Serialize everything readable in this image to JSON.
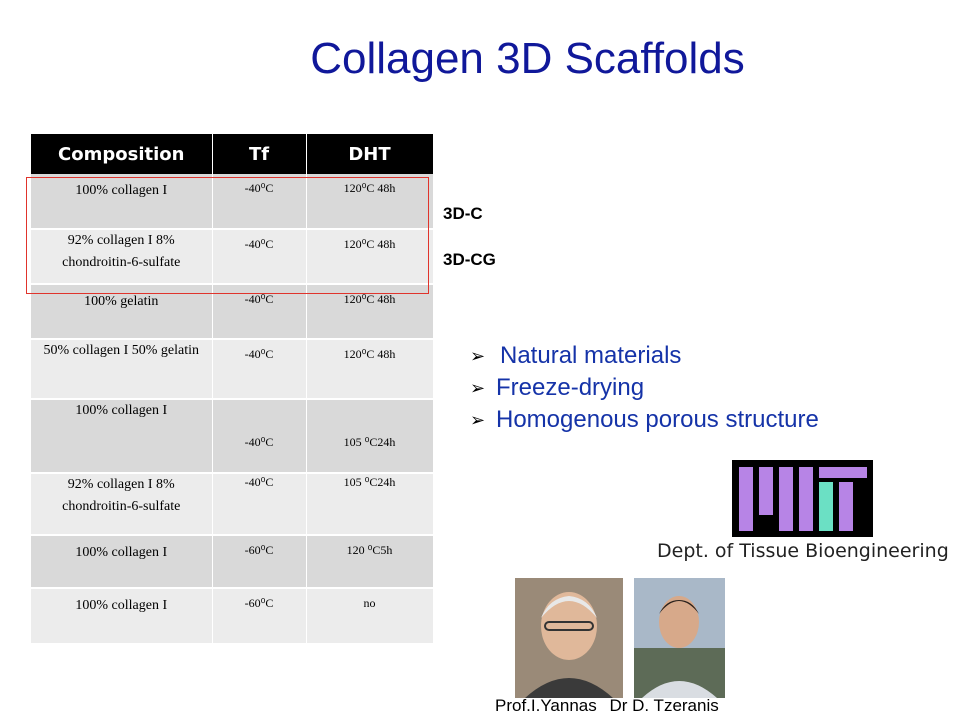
{
  "slide": {
    "title": "Collagen 3D Scaffolds"
  },
  "table": {
    "headers": [
      "Composition",
      "Tf",
      "DHT"
    ],
    "rows": [
      {
        "composition": "100% collagen I",
        "tf": "-40⁰C",
        "dht": "120⁰C 48h"
      },
      {
        "composition": "92% collagen I 8% chondroitin-6-sulfate",
        "tf": "-40⁰C",
        "dht": "120⁰C 48h"
      },
      {
        "composition": "100% gelatin",
        "tf": "-40⁰C",
        "dht": "120⁰C 48h"
      },
      {
        "composition": "50% collagen I 50% gelatin",
        "tf": "-40⁰C",
        "dht": "120⁰C 48h"
      },
      {
        "composition": "100% collagen I",
        "tf": "-40⁰C",
        "dht": "105 ⁰C24h"
      },
      {
        "composition": "92% collagen I 8% chondroitin-6-sulfate",
        "tf": "-40⁰C",
        "dht": "105 ⁰C24h"
      },
      {
        "composition": "100% collagen I",
        "tf": "-60⁰C",
        "dht": "120 ⁰C5h"
      },
      {
        "composition": "100% collagen I",
        "tf": "-60⁰C",
        "dht": "no"
      }
    ]
  },
  "labels": {
    "row1": "3D-C",
    "row2": "3D-CG"
  },
  "bullets": [
    "Natural materials",
    "Freeze-drying",
    "Homogenous porous structure"
  ],
  "logo": {
    "icon": "mit-logo",
    "colors": {
      "bg": "#000000",
      "bar": "#b784e6",
      "accent": "#6be0c4"
    },
    "department": "Dept. of Tissue Bioengineering"
  },
  "photos": {
    "caption1": "Prof.I.Yannas",
    "caption2": "Dr D. Tzeranis"
  },
  "colors": {
    "title": "#10189a",
    "bullet_text": "#1533a8",
    "highlight": "#e0342c"
  }
}
